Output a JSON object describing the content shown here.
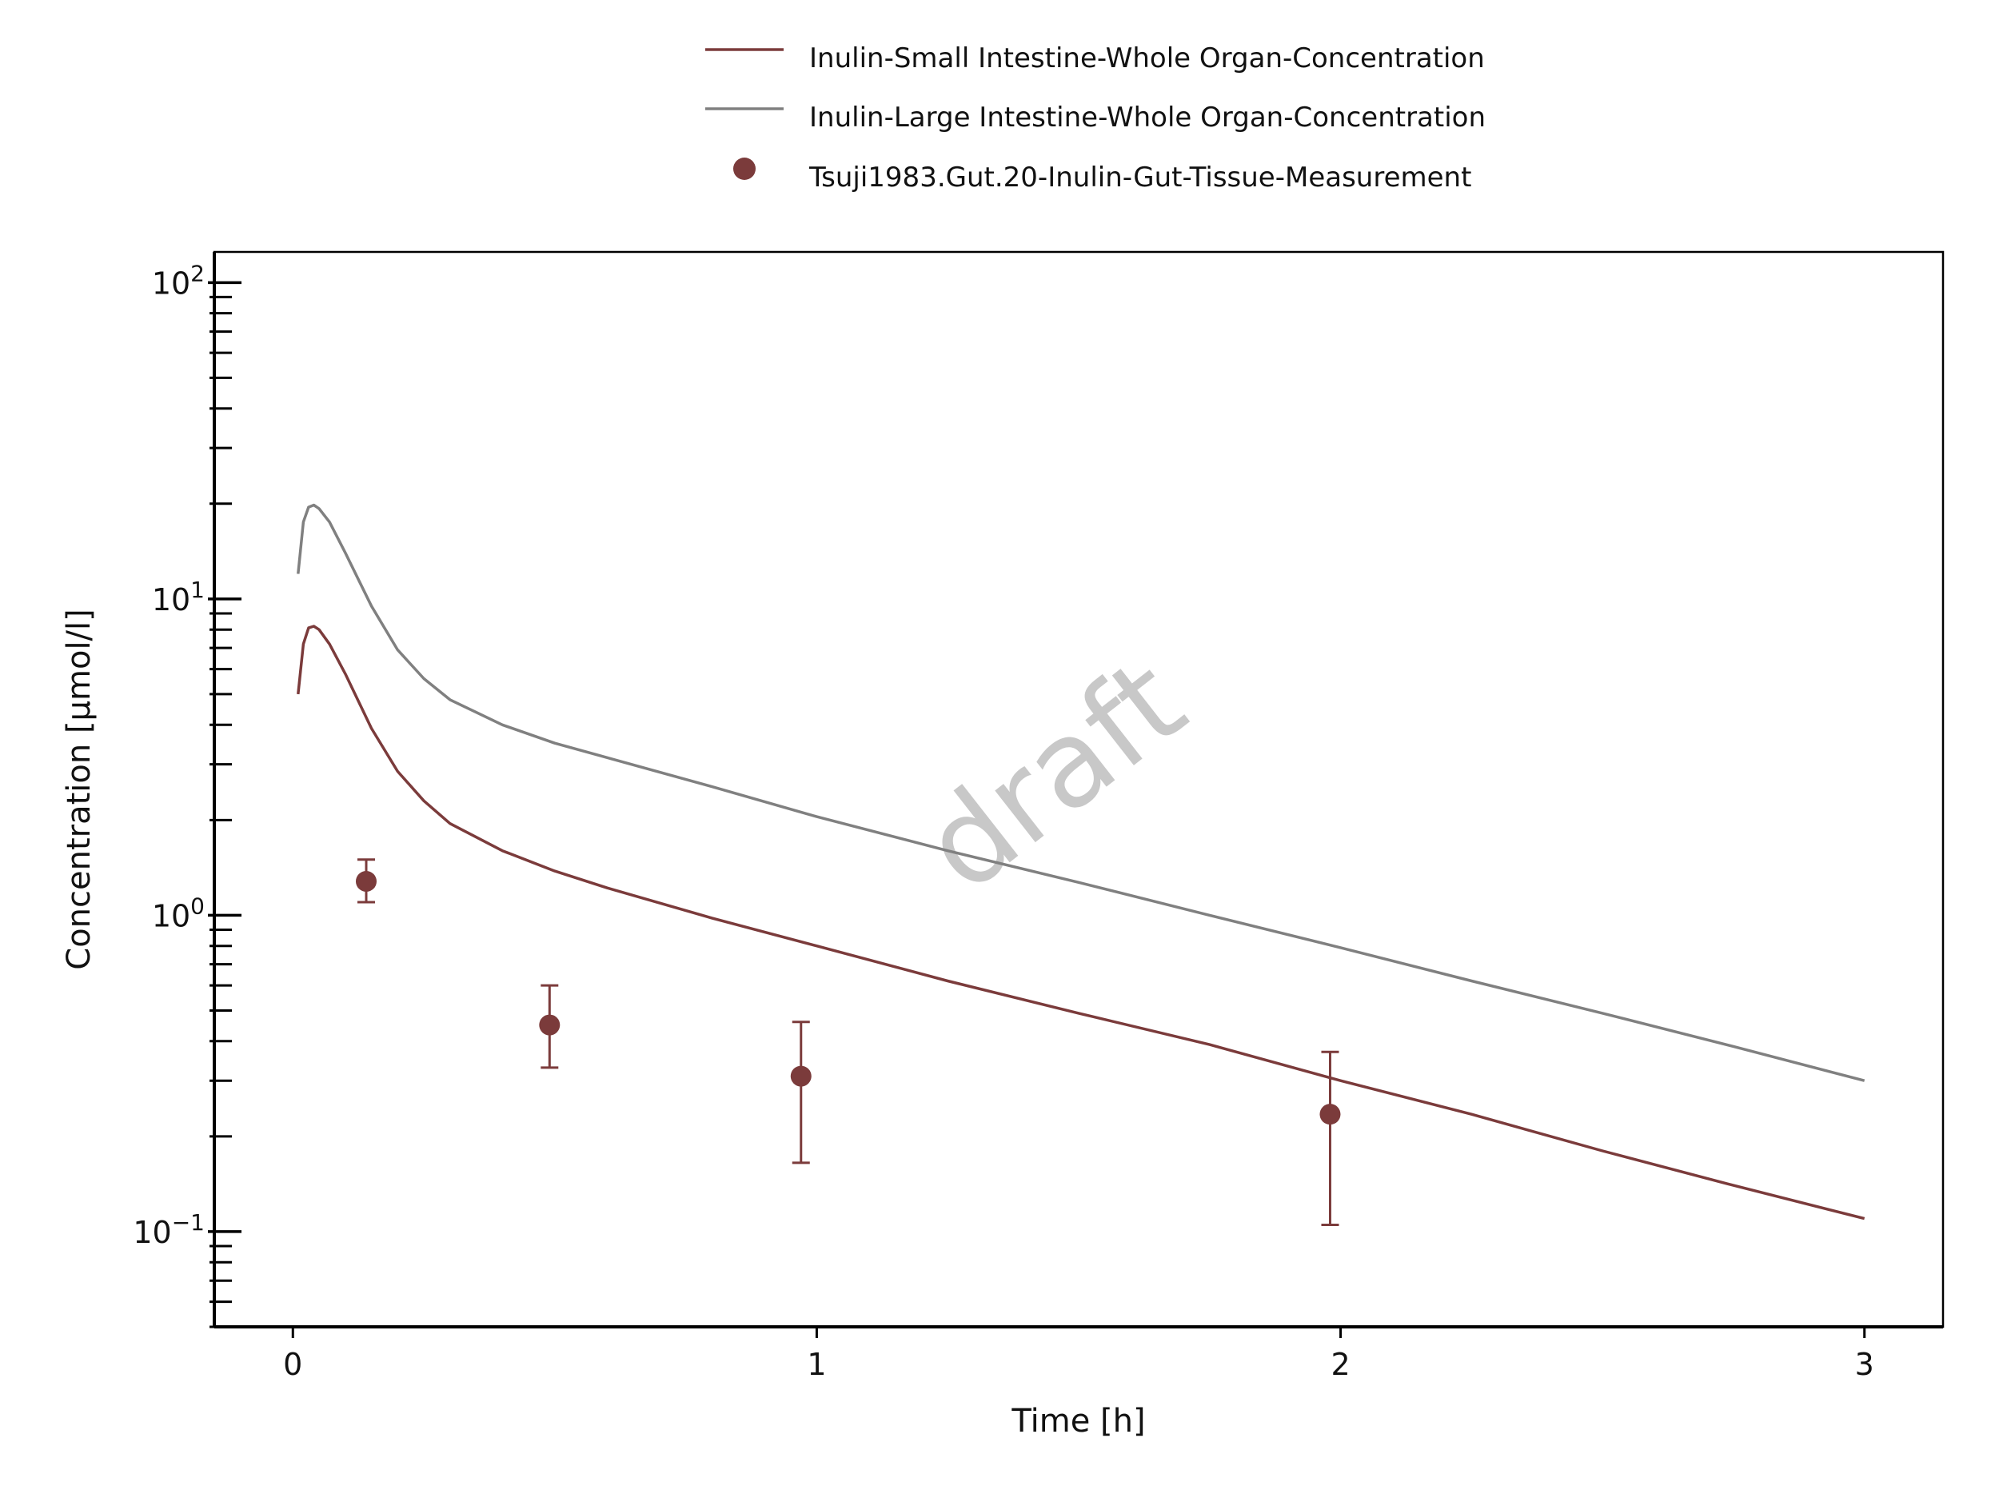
{
  "chart_data": {
    "type": "line",
    "xlabel": "Time [h]",
    "ylabel": "Concentration [µmol/l]",
    "xlim": [
      -0.15,
      3.15
    ],
    "ylim": [
      0.05,
      125
    ],
    "yscale": "log",
    "x_ticks": [
      0,
      1,
      2,
      3
    ],
    "y_ticks": [
      {
        "value": 0.1,
        "base": "10",
        "exp": "−1"
      },
      {
        "value": 1,
        "base": "10",
        "exp": "0"
      },
      {
        "value": 10,
        "base": "10",
        "exp": "1"
      },
      {
        "value": 100,
        "base": "10",
        "exp": "2"
      }
    ],
    "grid": false,
    "legend_position": "top-center",
    "watermark": "draft",
    "series": [
      {
        "name": "Inulin-Small Intestine-Whole Organ-Concentration",
        "kind": "line",
        "color": "#7b3b3b",
        "x": [
          0.01,
          0.02,
          0.03,
          0.04,
          0.05,
          0.07,
          0.1,
          0.15,
          0.2,
          0.25,
          0.3,
          0.4,
          0.5,
          0.6,
          0.8,
          1.0,
          1.25,
          1.5,
          1.75,
          2.0,
          2.25,
          2.5,
          2.75,
          3.0
        ],
        "y": [
          5.0,
          7.2,
          8.1,
          8.2,
          8.0,
          7.2,
          5.8,
          3.9,
          2.85,
          2.3,
          1.95,
          1.6,
          1.38,
          1.22,
          0.98,
          0.8,
          0.62,
          0.49,
          0.39,
          0.3,
          0.235,
          0.18,
          0.14,
          0.11
        ]
      },
      {
        "name": "Inulin-Large Intestine-Whole Organ-Concentration",
        "kind": "line",
        "color": "#808080",
        "x": [
          0.01,
          0.02,
          0.03,
          0.04,
          0.05,
          0.07,
          0.1,
          0.15,
          0.2,
          0.25,
          0.3,
          0.4,
          0.5,
          0.6,
          0.8,
          1.0,
          1.25,
          1.5,
          1.75,
          2.0,
          2.25,
          2.5,
          2.75,
          3.0
        ],
        "y": [
          12.0,
          17.5,
          19.5,
          19.8,
          19.3,
          17.5,
          14.0,
          9.5,
          6.9,
          5.6,
          4.8,
          4.0,
          3.5,
          3.15,
          2.55,
          2.05,
          1.6,
          1.27,
          1.0,
          0.79,
          0.62,
          0.49,
          0.385,
          0.3
        ]
      },
      {
        "name": "Tsuji1983.Gut.20-Inulin-Gut-Tissue-Measurement",
        "kind": "scatter",
        "color": "#7b3b3b",
        "x": [
          0.14,
          0.49,
          0.97,
          1.98
        ],
        "y": [
          1.28,
          0.45,
          0.31,
          0.235
        ],
        "y_err_low": [
          1.1,
          0.33,
          0.165,
          0.105
        ],
        "y_err_high": [
          1.5,
          0.6,
          0.46,
          0.37
        ]
      }
    ]
  }
}
